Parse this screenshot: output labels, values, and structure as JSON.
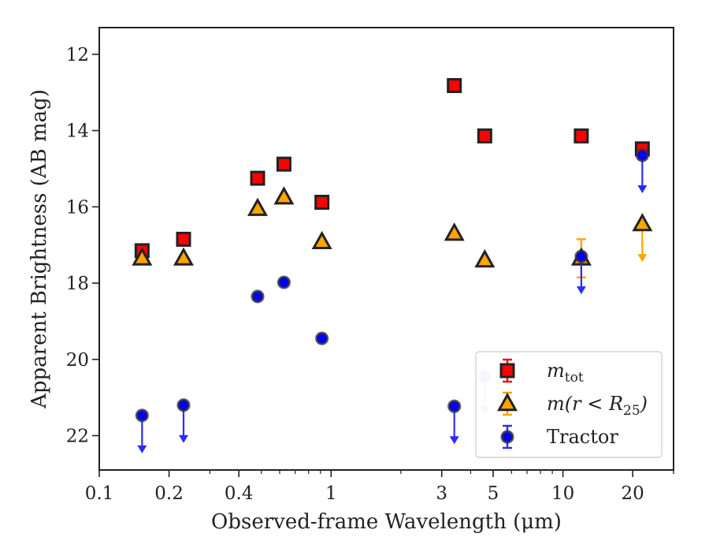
{
  "chart_data": {
    "type": "scatter",
    "title": "",
    "xlabel": "Observed-frame Wavelength (μm)",
    "ylabel": "Apparent Brightness (AB mag)",
    "xscale": "log",
    "yinverted": true,
    "xlim": [
      0.1,
      30
    ],
    "ylim": [
      22.9,
      11.3
    ],
    "xticks": [
      {
        "value": 0.1,
        "label": "0.1"
      },
      {
        "value": 0.2,
        "label": "0.2"
      },
      {
        "value": 0.4,
        "label": "0.4"
      },
      {
        "value": 1,
        "label": "1"
      },
      {
        "value": 3,
        "label": "3"
      },
      {
        "value": 5,
        "label": "5"
      },
      {
        "value": 10,
        "label": "10"
      },
      {
        "value": 20,
        "label": "20"
      }
    ],
    "yticks": [
      {
        "value": 12,
        "label": "12"
      },
      {
        "value": 14,
        "label": "14"
      },
      {
        "value": 16,
        "label": "16"
      },
      {
        "value": 18,
        "label": "18"
      },
      {
        "value": 20,
        "label": "20"
      },
      {
        "value": 22,
        "label": "22"
      }
    ],
    "grid": false,
    "legend_position": "bottom-right",
    "series": [
      {
        "name": "m_tot",
        "legend_main": "m",
        "legend_sub": "tot",
        "marker": "square",
        "color": "#ff0000",
        "edge_color": "#222222",
        "points": [
          {
            "x": 0.153,
            "y": 17.15
          },
          {
            "x": 0.231,
            "y": 16.85
          },
          {
            "x": 0.482,
            "y": 15.25
          },
          {
            "x": 0.626,
            "y": 14.88
          },
          {
            "x": 0.913,
            "y": 15.88
          },
          {
            "x": 3.4,
            "y": 12.82
          },
          {
            "x": 4.6,
            "y": 14.14
          },
          {
            "x": 12.0,
            "y": 14.14
          },
          {
            "x": 22.0,
            "y": 14.48
          }
        ]
      },
      {
        "name": "m(r < R_25)",
        "legend_main": "m(r < R",
        "legend_sub": "25",
        "legend_tail": ")",
        "marker": "triangle",
        "color": "#ffa500",
        "edge_color": "#222222",
        "points": [
          {
            "x": 0.153,
            "y": 17.35
          },
          {
            "x": 0.231,
            "y": 17.35
          },
          {
            "x": 0.482,
            "y": 16.05
          },
          {
            "x": 0.626,
            "y": 15.75
          },
          {
            "x": 0.913,
            "y": 16.92
          },
          {
            "x": 3.4,
            "y": 16.7
          },
          {
            "x": 4.6,
            "y": 17.4
          },
          {
            "x": 12.0,
            "y": 17.35,
            "yerr": 0.5
          },
          {
            "x": 22.0,
            "y": 16.45,
            "upper_limit": true
          }
        ]
      },
      {
        "name": "Tractor",
        "marker": "circle",
        "color": "#0000ff",
        "edge_color": "#333333",
        "points": [
          {
            "x": 0.153,
            "y": 21.47,
            "upper_limit": true
          },
          {
            "x": 0.231,
            "y": 21.2,
            "upper_limit": true
          },
          {
            "x": 0.482,
            "y": 18.35
          },
          {
            "x": 0.626,
            "y": 17.98
          },
          {
            "x": 0.913,
            "y": 19.45
          },
          {
            "x": 3.4,
            "y": 21.23,
            "upper_limit": true
          },
          {
            "x": 4.6,
            "y": 20.45,
            "upper_limit": true,
            "faded": true
          },
          {
            "x": 12.0,
            "y": 17.3,
            "upper_limit": true
          },
          {
            "x": 22.0,
            "y": 14.65,
            "upper_limit": true
          }
        ]
      }
    ]
  }
}
